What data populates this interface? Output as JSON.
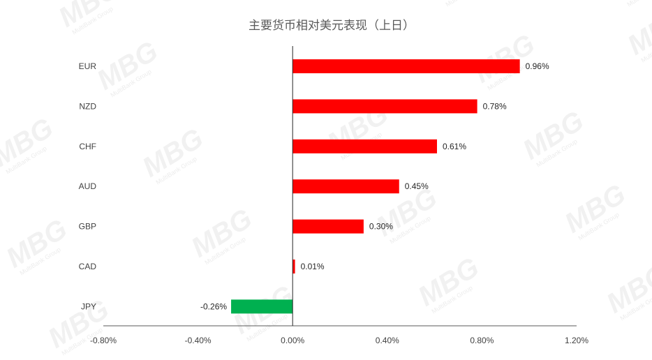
{
  "chart_data": {
    "type": "bar",
    "orientation": "horizontal",
    "title": "主要货币相对美元表现（上日）",
    "categories": [
      "EUR",
      "NZD",
      "CHF",
      "AUD",
      "GBP",
      "CAD",
      "JPY"
    ],
    "values": [
      0.96,
      0.78,
      0.61,
      0.45,
      0.3,
      0.01,
      -0.26
    ],
    "value_labels": [
      "0.96%",
      "0.78%",
      "0.61%",
      "0.45%",
      "0.30%",
      "0.01%",
      "-0.26%"
    ],
    "xlim": [
      -0.8,
      1.2
    ],
    "xticks": [
      -0.8,
      -0.4,
      0.0,
      0.4,
      0.8,
      1.2
    ],
    "xtick_labels": [
      "-0.80%",
      "-0.40%",
      "0.00%",
      "0.40%",
      "0.80%",
      "1.20%"
    ],
    "grid": false,
    "legend": "none",
    "colors": {
      "positive": "#ff0000",
      "negative": "#00b050"
    }
  },
  "watermark": {
    "logo": "MBG",
    "sub": "MultiBank Group"
  }
}
